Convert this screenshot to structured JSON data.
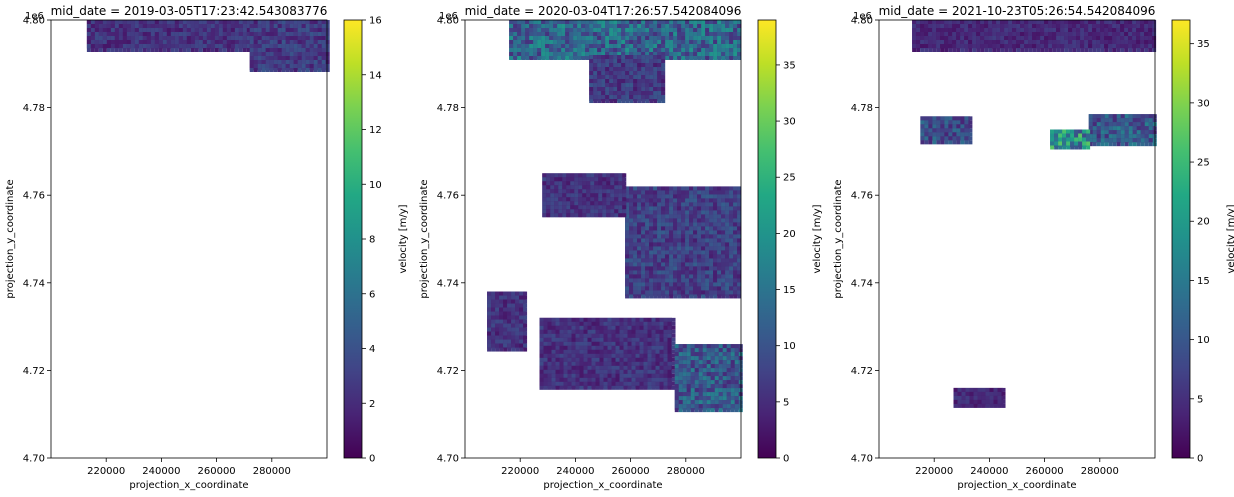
{
  "chart_data": [
    {
      "type": "heatmap",
      "title": "mid_date = 2019-03-05T17:23:42.543083776",
      "xlabel": "projection_x_coordinate",
      "ylabel": "projection_y_coordinate",
      "y_offset_label": "1e6",
      "x_ticks": [
        "220000",
        "240000",
        "260000",
        "280000"
      ],
      "x_tick_values": [
        220000,
        240000,
        260000,
        280000
      ],
      "y_ticks": [
        "4.70",
        "4.72",
        "4.74",
        "4.76",
        "4.78",
        "4.80"
      ],
      "y_tick_values": [
        4.7,
        4.72,
        4.74,
        4.76,
        4.78,
        4.8
      ],
      "xlim": [
        200000,
        300000
      ],
      "ylim": [
        4.7,
        4.8
      ],
      "colorbar": {
        "label": "velocity [m/y]",
        "range": [
          0,
          16
        ],
        "ticks": [
          "0",
          "2",
          "4",
          "6",
          "8",
          "10",
          "12",
          "14",
          "16"
        ],
        "tick_values": [
          0,
          2,
          4,
          6,
          8,
          10,
          12,
          14,
          16
        ]
      },
      "regions": [
        {
          "x": [
            213000,
            272000
          ],
          "y": [
            4.7935,
            4.8
          ],
          "level": 0.15
        },
        {
          "x": [
            272000,
            300000
          ],
          "y": [
            4.7885,
            4.8
          ],
          "level": 0.18
        }
      ]
    },
    {
      "type": "heatmap",
      "title": "mid_date = 2020-03-04T17:26:57.542084096",
      "xlabel": "projection_x_coordinate",
      "ylabel": "projection_y_coordinate",
      "y_offset_label": "1e6",
      "x_ticks": [
        "220000",
        "240000",
        "260000",
        "280000"
      ],
      "x_tick_values": [
        220000,
        240000,
        260000,
        280000
      ],
      "y_ticks": [
        "4.70",
        "4.72",
        "4.74",
        "4.76",
        "4.78",
        "4.80"
      ],
      "y_tick_values": [
        4.7,
        4.72,
        4.74,
        4.76,
        4.78,
        4.8
      ],
      "xlim": [
        200000,
        300000
      ],
      "ylim": [
        4.7,
        4.8
      ],
      "colorbar": {
        "label": "velocity [m/y]",
        "range": [
          0,
          39
        ],
        "ticks": [
          "0",
          "5",
          "10",
          "15",
          "20",
          "25",
          "30",
          "35"
        ],
        "tick_values": [
          0,
          5,
          10,
          15,
          20,
          25,
          30,
          35
        ]
      },
      "regions": [
        {
          "x": [
            216000,
            300000
          ],
          "y": [
            4.791,
            4.8
          ],
          "level": 0.35
        },
        {
          "x": [
            245000,
            272000
          ],
          "y": [
            4.7815,
            4.792
          ],
          "level": 0.18
        },
        {
          "x": [
            258000,
            300000
          ],
          "y": [
            4.737,
            4.762
          ],
          "level": 0.2
        },
        {
          "x": [
            228000,
            258000
          ],
          "y": [
            4.755,
            4.765
          ],
          "level": 0.15
        },
        {
          "x": [
            227000,
            275000
          ],
          "y": [
            4.716,
            4.732
          ],
          "level": 0.15
        },
        {
          "x": [
            276000,
            300000
          ],
          "y": [
            4.711,
            4.726
          ],
          "level": 0.3
        },
        {
          "x": [
            208000,
            222000
          ],
          "y": [
            4.725,
            4.738
          ],
          "level": 0.15
        }
      ]
    },
    {
      "type": "heatmap",
      "title": "mid_date = 2021-10-23T05:26:54.542084096",
      "xlabel": "projection_x_coordinate",
      "ylabel": "projection_y_coordinate",
      "y_offset_label": "1e6",
      "x_ticks": [
        "220000",
        "240000",
        "260000",
        "280000"
      ],
      "x_tick_values": [
        220000,
        240000,
        260000,
        280000
      ],
      "y_ticks": [
        "4.70",
        "4.72",
        "4.74",
        "4.76",
        "4.78",
        "4.80"
      ],
      "y_tick_values": [
        4.7,
        4.72,
        4.74,
        4.76,
        4.78,
        4.8
      ],
      "xlim": [
        200000,
        300000
      ],
      "ylim": [
        4.7,
        4.8
      ],
      "colorbar": {
        "label": "velocity [m/y]",
        "range": [
          0,
          37
        ],
        "ticks": [
          "0",
          "5",
          "10",
          "15",
          "20",
          "25",
          "30",
          "35"
        ],
        "tick_values": [
          0,
          5,
          10,
          15,
          20,
          25,
          30,
          35
        ]
      },
      "regions": [
        {
          "x": [
            212000,
            300000
          ],
          "y": [
            4.7935,
            4.8
          ],
          "level": 0.12
        },
        {
          "x": [
            215000,
            233000
          ],
          "y": [
            4.7725,
            4.778
          ],
          "level": 0.25
        },
        {
          "x": [
            276000,
            300000
          ],
          "y": [
            4.772,
            4.7785
          ],
          "level": 0.3
        },
        {
          "x": [
            262000,
            276000
          ],
          "y": [
            4.771,
            4.775
          ],
          "level": 0.5
        },
        {
          "x": [
            227000,
            245000
          ],
          "y": [
            4.712,
            4.716
          ],
          "level": 0.12
        }
      ]
    }
  ]
}
